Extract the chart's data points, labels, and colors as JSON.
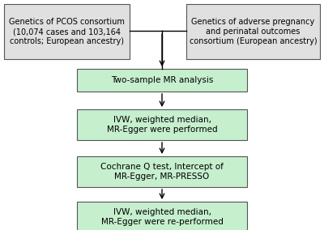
{
  "background_color": "#ffffff",
  "fig_width": 4.0,
  "fig_height": 2.84,
  "dpi": 100,
  "box_fill_green": "#c6efce",
  "box_fill_gray": "#e0e0e0",
  "box_edge_color": "#555555",
  "arrow_color": "#000000",
  "text_color": "#000000",
  "font_size_top": 7.0,
  "font_size_box": 7.5,
  "top_left_text": "Genetics of PCOS consortium\n(10,074 cases and 103,164\ncontrols; European ancestry)",
  "top_right_text": "Genetics of adverse pregnancy\nand perinatal outcomes\nconsortium (European ancestry)",
  "box1_text": "Two-sample MR analysis",
  "box2_text": "IVW, weighted median,\nMR-Egger were performed",
  "box3_text": "Cochrane Q test, Intercept of\nMR-Egger, MR-PRESSO",
  "box4_text": "IVW, weighted median,\nMR-Egger were re-performed"
}
